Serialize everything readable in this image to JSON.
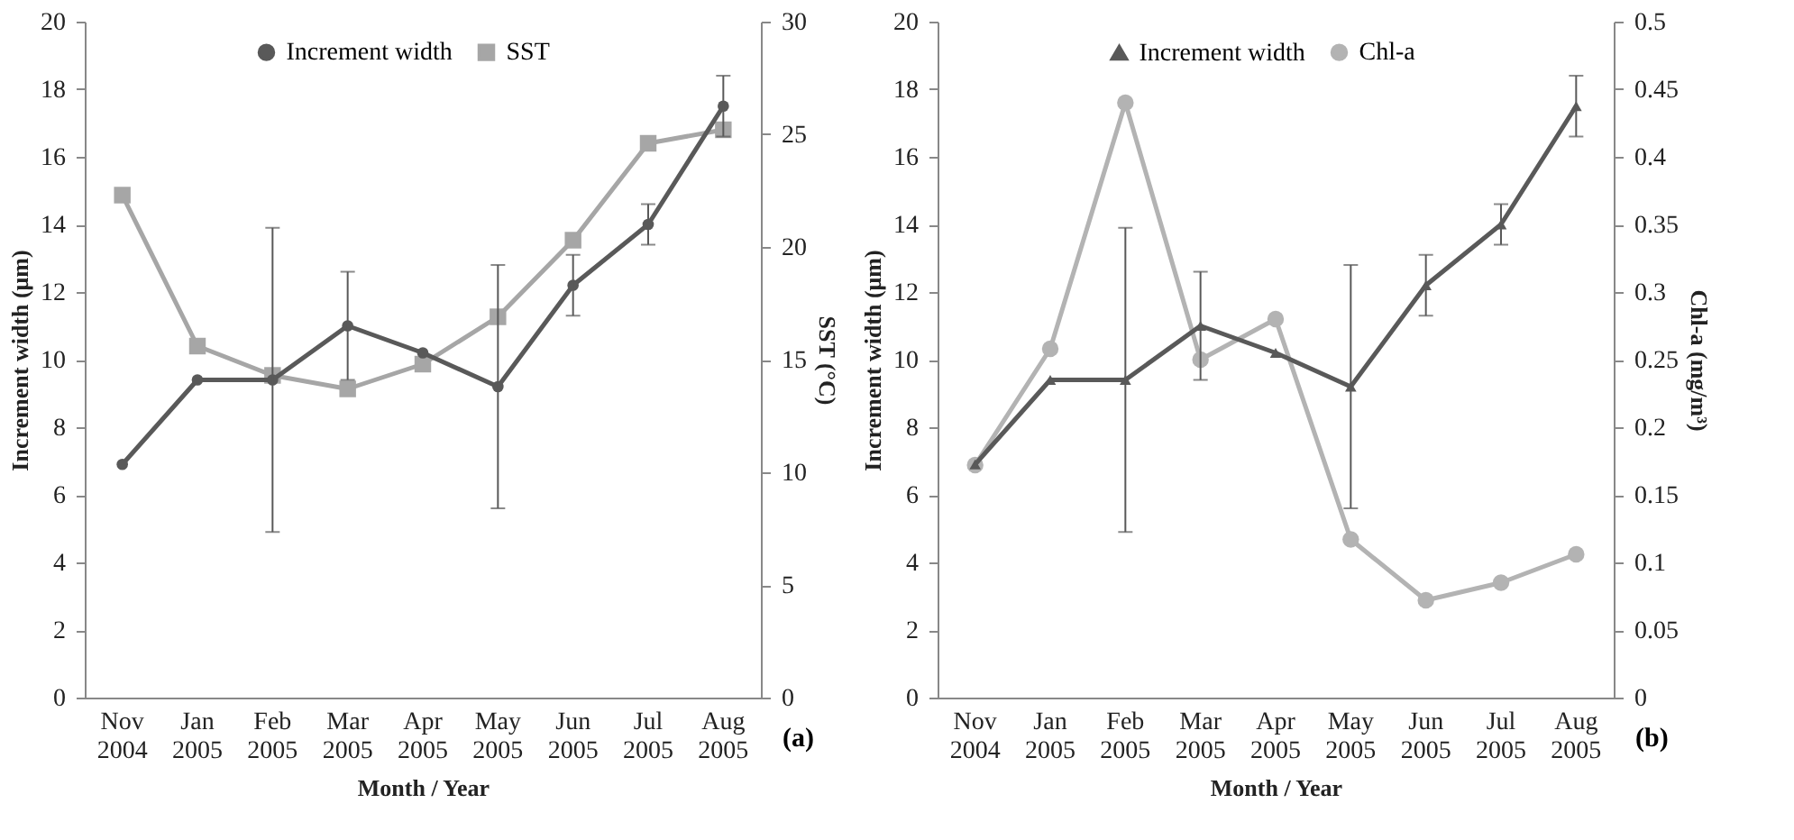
{
  "chart_data": [
    {
      "type": "line",
      "categories": [
        "Nov\n2004",
        "Jan\n2005",
        "Feb\n2005",
        "Mar\n2005",
        "Apr\n2005",
        "May\n2005",
        "Jun\n2005",
        "Jul\n2005",
        "Aug\n2005"
      ],
      "xlabel": "Month / Year",
      "ylabel": "Increment width (μm)",
      "y2label": "SST (°C)",
      "ylim": [
        0,
        20
      ],
      "yticks": [
        0,
        2,
        4,
        6,
        8,
        10,
        12,
        14,
        16,
        18,
        20
      ],
      "y2lim": [
        0,
        30
      ],
      "y2ticks": [
        0,
        5,
        10,
        15,
        20,
        25,
        30
      ],
      "legend": "top",
      "grid": false,
      "annotations": [
        "(a)"
      ],
      "series": [
        {
          "name": "Increment width",
          "color": "#595959",
          "marker": "circle",
          "values": [
            6.9,
            9.4,
            9.4,
            11.0,
            10.2,
            9.2,
            12.2,
            14.0,
            17.5
          ],
          "errors": [
            null,
            null,
            4.5,
            1.6,
            null,
            3.6,
            0.9,
            0.6,
            0.9
          ]
        },
        {
          "name": "SST",
          "color": "#a6a6a6",
          "marker": "square",
          "axis": "y2",
          "values": [
            22.3,
            15.6,
            14.3,
            13.7,
            14.8,
            16.9,
            20.3,
            24.6,
            25.2
          ]
        }
      ]
    },
    {
      "type": "line",
      "categories": [
        "Nov\n2004",
        "Jan\n2005",
        "Feb\n2005",
        "Mar\n2005",
        "Apr\n2005",
        "May\n2005",
        "Jun\n2005",
        "Jul\n2005",
        "Aug\n2005"
      ],
      "xlabel": "Month / Year",
      "ylabel": "Increment width (μm)",
      "y2label": "Chl-a (mg/m³)",
      "ylim": [
        0,
        20
      ],
      "yticks": [
        0,
        2,
        4,
        6,
        8,
        10,
        12,
        14,
        16,
        18,
        20
      ],
      "y2lim": [
        0,
        0.5
      ],
      "y2ticks": [
        0,
        0.05,
        0.1,
        0.15,
        0.2,
        0.25,
        0.3,
        0.35,
        0.4,
        0.45,
        0.5
      ],
      "legend": "top",
      "grid": false,
      "annotations": [
        "(b)"
      ],
      "series": [
        {
          "name": "Increment width",
          "color": "#595959",
          "marker": "triangle",
          "values": [
            6.9,
            9.4,
            9.4,
            11.0,
            10.2,
            9.2,
            12.2,
            14.0,
            17.5
          ],
          "errors": [
            null,
            null,
            4.5,
            1.6,
            null,
            3.6,
            0.9,
            0.6,
            0.9
          ]
        },
        {
          "name": "Chl-a",
          "color": "#b3b3b3",
          "marker": "circle",
          "axis": "y2",
          "values": [
            0.172,
            0.258,
            0.44,
            0.25,
            0.28,
            0.117,
            0.072,
            0.085,
            0.106
          ]
        }
      ]
    }
  ]
}
